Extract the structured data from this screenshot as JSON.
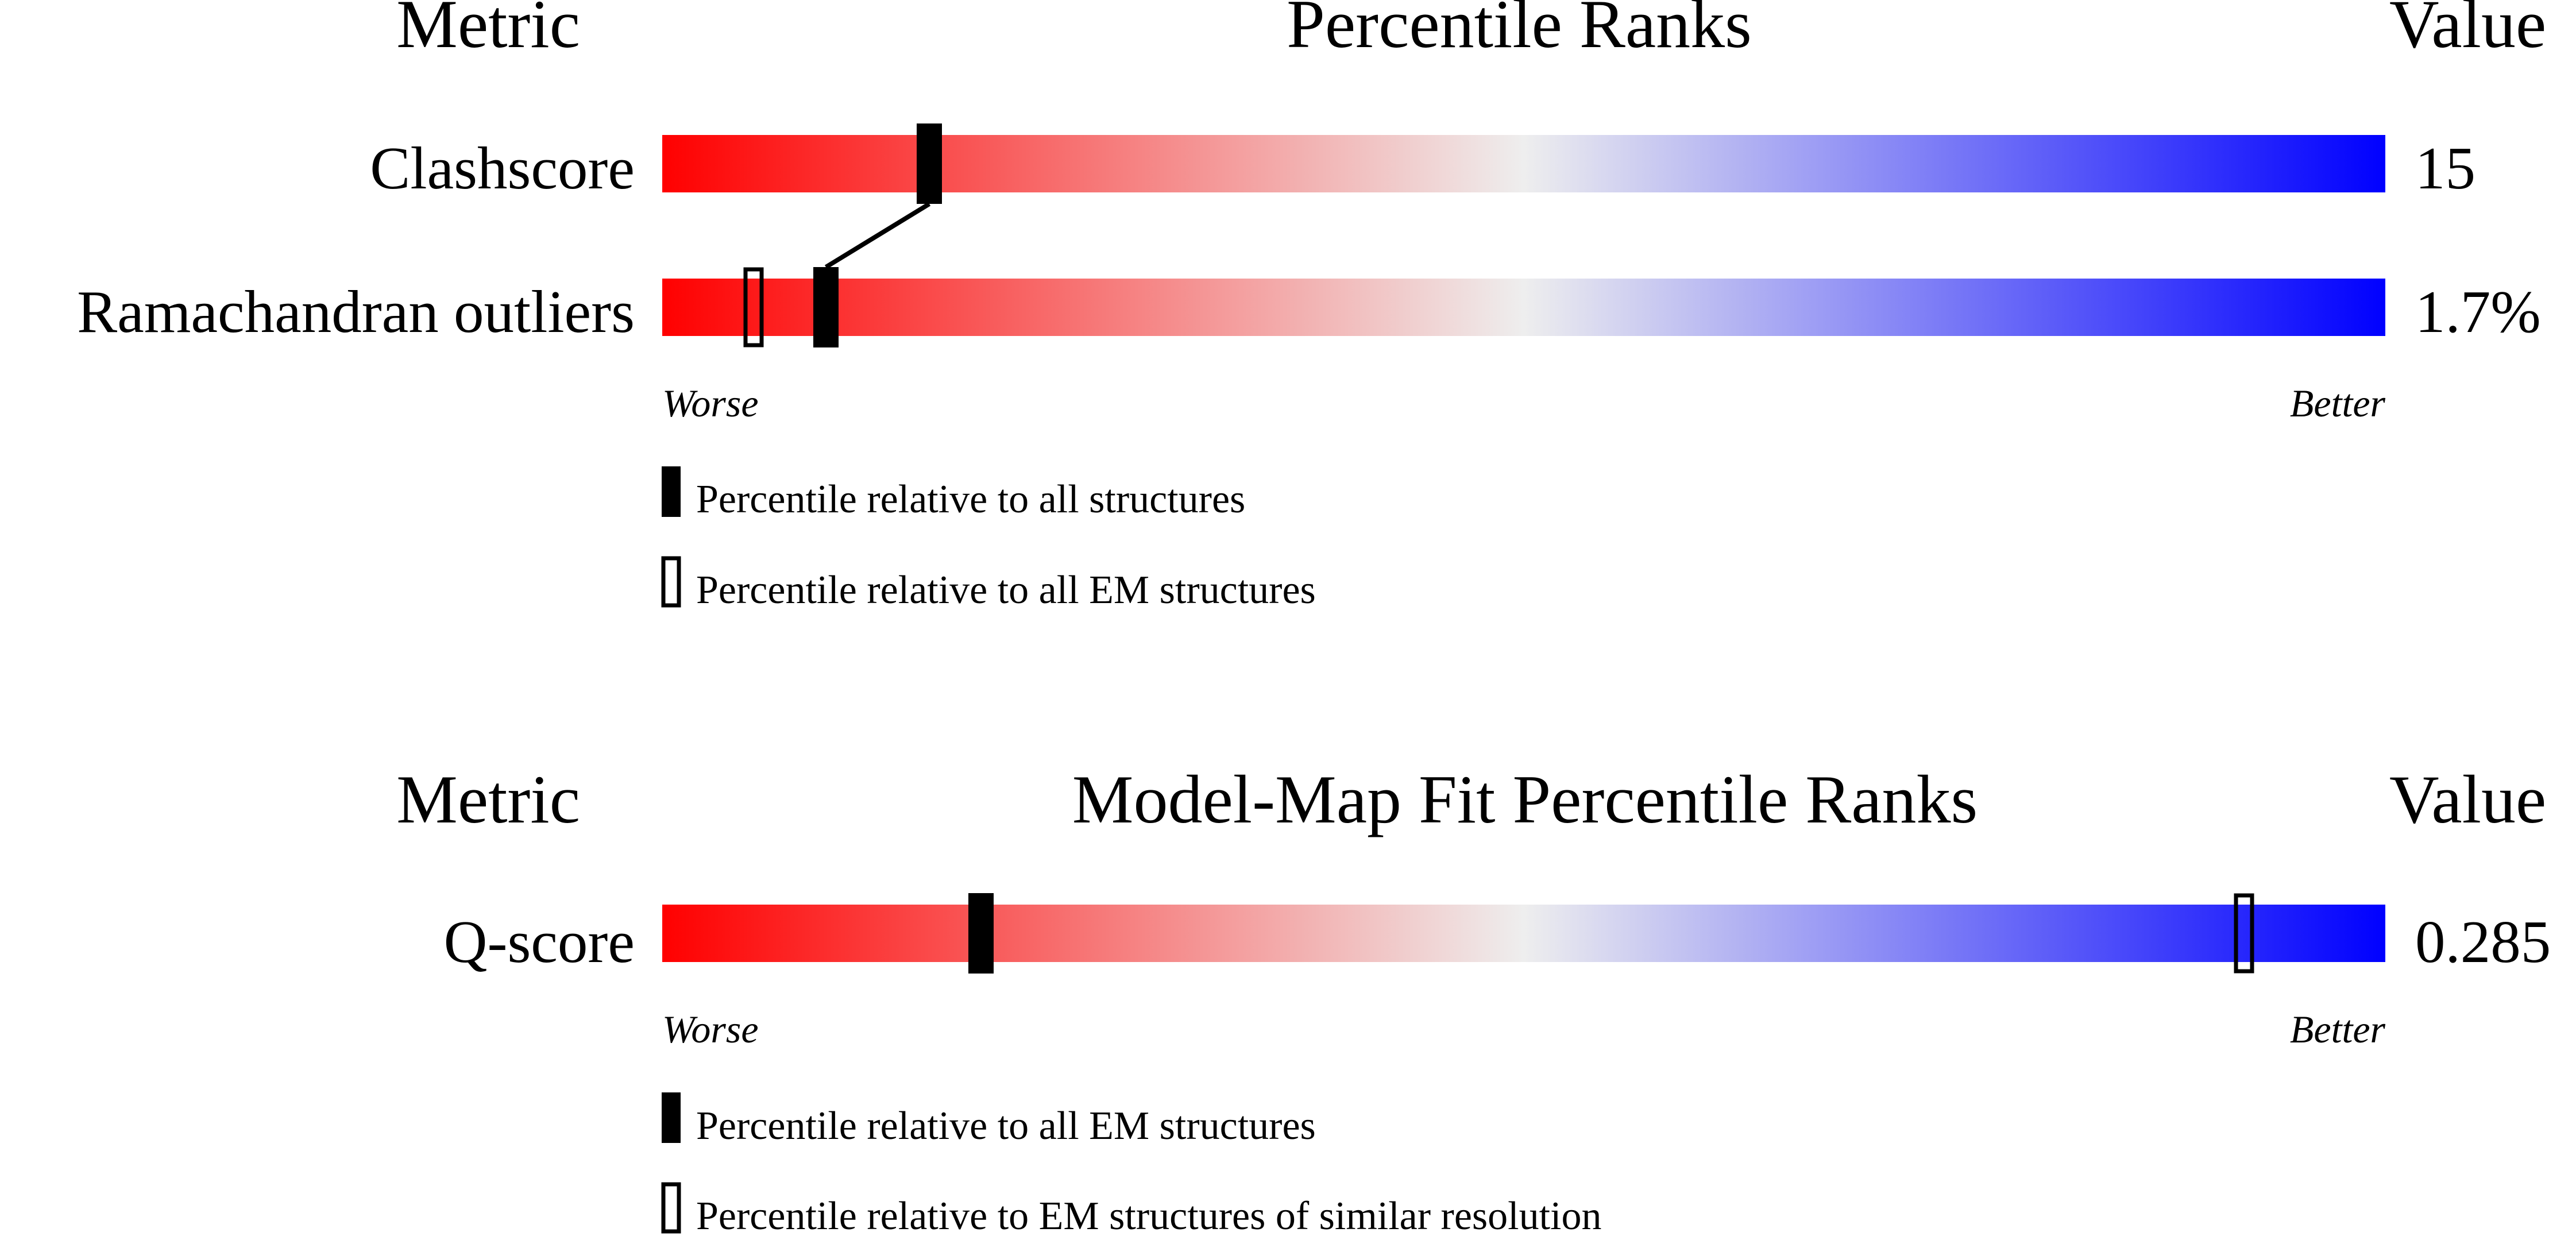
{
  "chart_data": [
    {
      "type": "percentile-rank-bars",
      "header": {
        "metric": "Metric",
        "title": "Percentile Ranks",
        "value": "Value"
      },
      "scale": {
        "left_label": "Worse",
        "right_label": "Better",
        "range": [
          0,
          100
        ]
      },
      "gradient": {
        "worse_color": "#ff0000",
        "middle_color": "#eeeeee",
        "better_color": "#0000ff"
      },
      "metrics": [
        {
          "name": "Clashscore",
          "value": "15",
          "percentile_all": 15.5,
          "percentile_subset": null
        },
        {
          "name": "Ramachandran outliers",
          "value": "1.7%",
          "percentile_all": 9.5,
          "percentile_subset": 5.3
        }
      ],
      "legend": [
        {
          "style": "filled",
          "label": "Percentile relative to all structures"
        },
        {
          "style": "open",
          "label": "Percentile relative to all EM structures"
        }
      ]
    },
    {
      "type": "percentile-rank-bars",
      "header": {
        "metric": "Metric",
        "title": "Model-Map Fit Percentile Ranks",
        "value": "Value"
      },
      "scale": {
        "left_label": "Worse",
        "right_label": "Better",
        "range": [
          0,
          100
        ]
      },
      "gradient": {
        "worse_color": "#ff0000",
        "middle_color": "#eeeeee",
        "better_color": "#0000ff"
      },
      "metrics": [
        {
          "name": "Q-score",
          "value": "0.285",
          "percentile_all": 18.5,
          "percentile_subset": 91.8
        }
      ],
      "legend": [
        {
          "style": "filled",
          "label": "Percentile relative to all EM structures"
        },
        {
          "style": "open",
          "label": "Percentile relative to EM structures of similar resolution"
        }
      ]
    }
  ]
}
